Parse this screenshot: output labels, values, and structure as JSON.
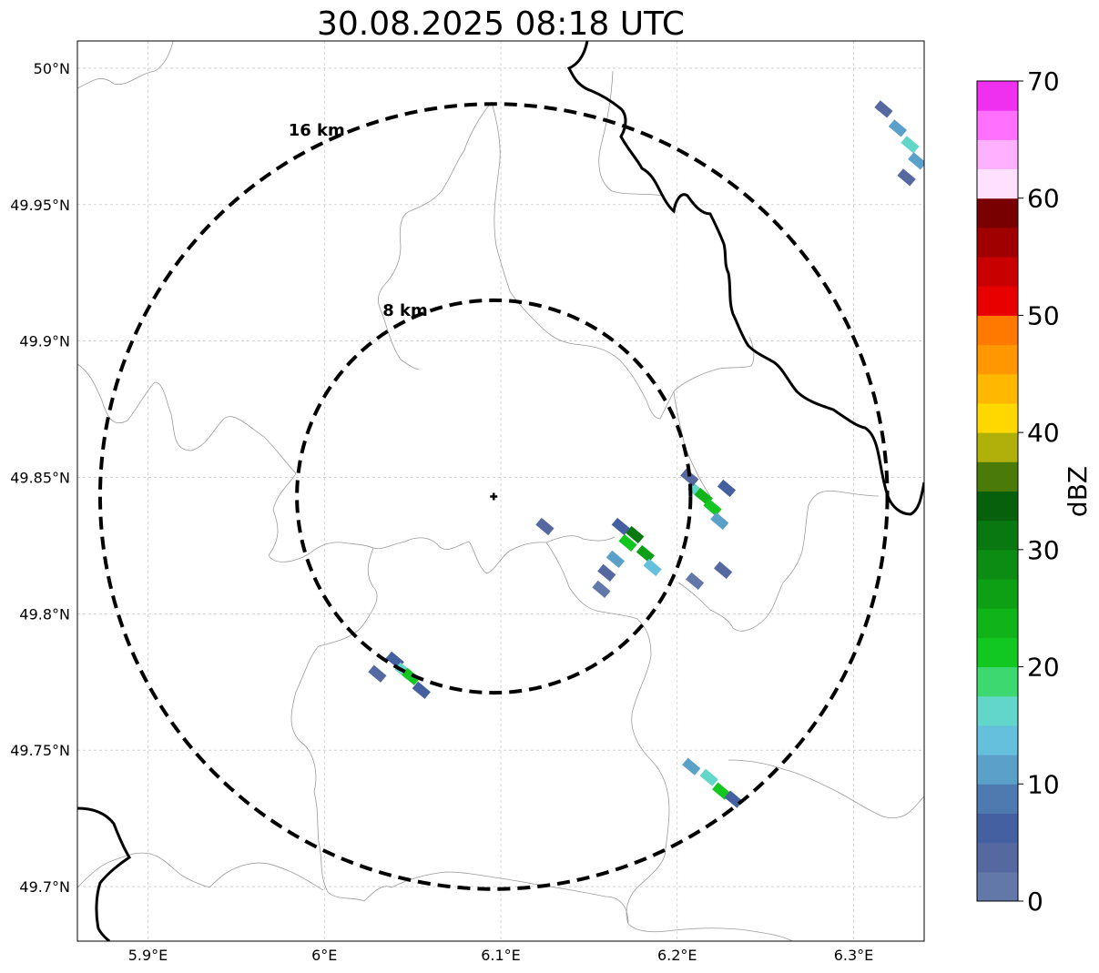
{
  "title": "30.08.2025 08:18 UTC",
  "map": {
    "lon_range": [
      5.86,
      6.34
    ],
    "lat_range": [
      49.68,
      50.01
    ],
    "lon_ticks": [
      {
        "value": 5.9,
        "label": "5.9°E"
      },
      {
        "value": 6.0,
        "label": "6°E"
      },
      {
        "value": 6.1,
        "label": "6.1°E"
      },
      {
        "value": 6.2,
        "label": "6.2°E"
      },
      {
        "value": 6.3,
        "label": "6.3°E"
      }
    ],
    "lat_ticks": [
      {
        "value": 50.0,
        "label": "50°N"
      },
      {
        "value": 49.95,
        "label": "49.95°N"
      },
      {
        "value": 49.9,
        "label": "49.9°N"
      },
      {
        "value": 49.85,
        "label": "49.85°N"
      },
      {
        "value": 49.8,
        "label": "49.8°N"
      },
      {
        "value": 49.75,
        "label": "49.75°N"
      },
      {
        "value": 49.7,
        "label": "49.7°N"
      }
    ],
    "gridlines": true,
    "center": {
      "lon": 6.096,
      "lat": 49.843
    },
    "range_rings": [
      {
        "label": "8 km",
        "radius_km": 8
      },
      {
        "label": "16 km",
        "radius_km": 16
      }
    ],
    "echoes": [
      {
        "lon": 6.317,
        "lat": 49.985,
        "dbz": 4
      },
      {
        "lon": 6.325,
        "lat": 49.978,
        "dbz": 10
      },
      {
        "lon": 6.332,
        "lat": 49.972,
        "dbz": 16
      },
      {
        "lon": 6.336,
        "lat": 49.966,
        "dbz": 12
      },
      {
        "lon": 6.33,
        "lat": 49.96,
        "dbz": 3
      },
      {
        "lon": 6.16,
        "lat": 49.815,
        "dbz": 3
      },
      {
        "lon": 6.165,
        "lat": 49.82,
        "dbz": 10
      },
      {
        "lon": 6.172,
        "lat": 49.826,
        "dbz": 22
      },
      {
        "lon": 6.176,
        "lat": 49.829,
        "dbz": 30
      },
      {
        "lon": 6.182,
        "lat": 49.822,
        "dbz": 27
      },
      {
        "lon": 6.186,
        "lat": 49.817,
        "dbz": 14
      },
      {
        "lon": 6.168,
        "lat": 49.832,
        "dbz": 6
      },
      {
        "lon": 6.157,
        "lat": 49.809,
        "dbz": 2
      },
      {
        "lon": 6.125,
        "lat": 49.832,
        "dbz": 3
      },
      {
        "lon": 6.211,
        "lat": 49.845,
        "dbz": 16
      },
      {
        "lon": 6.215,
        "lat": 49.843,
        "dbz": 24
      },
      {
        "lon": 6.22,
        "lat": 49.839,
        "dbz": 20
      },
      {
        "lon": 6.224,
        "lat": 49.834,
        "dbz": 12
      },
      {
        "lon": 6.228,
        "lat": 49.846,
        "dbz": 6
      },
      {
        "lon": 6.207,
        "lat": 49.85,
        "dbz": 4
      },
      {
        "lon": 6.21,
        "lat": 49.812,
        "dbz": 2
      },
      {
        "lon": 6.226,
        "lat": 49.816,
        "dbz": 3
      },
      {
        "lon": 6.04,
        "lat": 49.783,
        "dbz": 5
      },
      {
        "lon": 6.045,
        "lat": 49.779,
        "dbz": 17
      },
      {
        "lon": 6.049,
        "lat": 49.777,
        "dbz": 21
      },
      {
        "lon": 6.055,
        "lat": 49.772,
        "dbz": 7
      },
      {
        "lon": 6.03,
        "lat": 49.778,
        "dbz": 3
      },
      {
        "lon": 6.208,
        "lat": 49.744,
        "dbz": 12
      },
      {
        "lon": 6.218,
        "lat": 49.74,
        "dbz": 15
      },
      {
        "lon": 6.225,
        "lat": 49.735,
        "dbz": 22
      },
      {
        "lon": 6.232,
        "lat": 49.732,
        "dbz": 6
      }
    ]
  },
  "colorbar": {
    "label": "dBZ",
    "min": 0,
    "max": 70,
    "ticks": [
      {
        "value": 0,
        "label": "0"
      },
      {
        "value": 10,
        "label": "10"
      },
      {
        "value": 20,
        "label": "20"
      },
      {
        "value": 30,
        "label": "30"
      },
      {
        "value": 40,
        "label": "40"
      },
      {
        "value": 50,
        "label": "50"
      },
      {
        "value": 60,
        "label": "60"
      },
      {
        "value": 70,
        "label": "70"
      }
    ],
    "colors": [
      "#6278a8",
      "#5568a0",
      "#4460a0",
      "#4e7ab0",
      "#5aa0c8",
      "#64c0dc",
      "#62d6c8",
      "#3ed870",
      "#12c820",
      "#10b418",
      "#0ea014",
      "#0c8c12",
      "#0a7810",
      "#06600c",
      "#4a7a08",
      "#b0b00a",
      "#ffd800",
      "#ffb800",
      "#ff9800",
      "#ff7800",
      "#e80000",
      "#c80000",
      "#a00000",
      "#780000",
      "#ffe0ff",
      "#ffb0ff",
      "#ff70ff",
      "#f030f0"
    ]
  }
}
